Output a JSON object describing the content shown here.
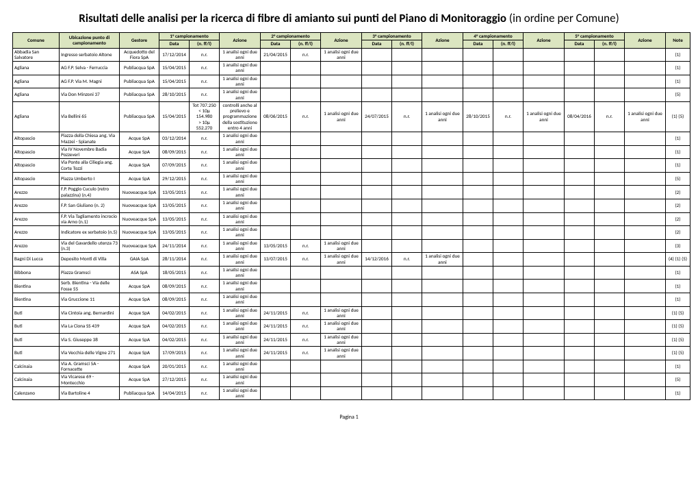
{
  "title_bold": "Risultati delle analisi per la ricerca di fibre di amianto sui punti del Piano di Monitoraggio",
  "title_rest": " (in ordine per Comune)",
  "footer": "Pagina 1",
  "headers": {
    "comune": "Comune",
    "ubicazione": "Ubicazione punto di campionamento",
    "gestore": "Gestore",
    "camp1": "1° campionamento",
    "camp2": "2° campionamento",
    "camp3": "3° campionamento",
    "camp4": "4° campionamento",
    "camp5": "5° campionamento",
    "data": "Data",
    "ff": "(n. ff/l)",
    "azione": "Azione",
    "note": "Note"
  },
  "rows": [
    {
      "comune": "Abbadia San Salvatore",
      "ubic": "Ingresso serbatoio Altone",
      "gest": "Acquedotto del Fiora SpA",
      "d1": "17/12/2014",
      "f1": "n.r.",
      "a1": "1 analisi ogni due anni",
      "d2": "21/04/2015",
      "f2": "n.r.",
      "a2": "1 analisi ogni due anni",
      "d3": "",
      "f3": "",
      "a3": "",
      "d4": "",
      "f4": "",
      "a4": "",
      "d5": "",
      "f5": "",
      "a5": "",
      "note": "(1)"
    },
    {
      "comune": "Agliana",
      "ubic": "AG F.P. Selva - Ferruccia",
      "gest": "Publiacqua SpA",
      "d1": "15/04/2015",
      "f1": "n.r.",
      "a1": "1 analisi ogni due anni",
      "d2": "",
      "f2": "",
      "a2": "",
      "d3": "",
      "f3": "",
      "a3": "",
      "d4": "",
      "f4": "",
      "a4": "",
      "d5": "",
      "f5": "",
      "a5": "",
      "note": "(1)"
    },
    {
      "comune": "Agliana",
      "ubic": "AG F.P. Via M. Magni",
      "gest": "Publiacqua SpA",
      "d1": "15/04/2015",
      "f1": "n.r.",
      "a1": "1 analisi ogni due anni",
      "d2": "",
      "f2": "",
      "a2": "",
      "d3": "",
      "f3": "",
      "a3": "",
      "d4": "",
      "f4": "",
      "a4": "",
      "d5": "",
      "f5": "",
      "a5": "",
      "note": "(1)"
    },
    {
      "comune": "Agliana",
      "ubic": "Via Don Minzoni 37",
      "gest": "Publiacqua SpA",
      "d1": "28/10/2015",
      "f1": "n.r.",
      "a1": "1 analisi ogni due anni",
      "d2": "",
      "f2": "",
      "a2": "",
      "d3": "",
      "f3": "",
      "a3": "",
      "d4": "",
      "f4": "",
      "a4": "",
      "d5": "",
      "f5": "",
      "a5": "",
      "note": "(5)"
    },
    {
      "comune": "Agliana",
      "ubic": "Via Bellini 65",
      "gest": "Publiacqua SpA",
      "d1": "15/04/2015",
      "f1": "Tot 707.250\n< 10μ 154.980\n> 10μ 552.270",
      "a1": "controlli anche al prelievo e programmazione della sostituzione entro 4 anni",
      "d2": "08/06/2015",
      "f2": "n.r.",
      "a2": "1 analisi ogni due anni",
      "d3": "24/07/2015",
      "f3": "n.r.",
      "a3": "1 analisi ogni due anni",
      "d4": "28/10/2015",
      "f4": "n.r.",
      "a4": "1 analisi ogni due anni",
      "d5": "08/04/2016",
      "f5": "n.r.",
      "a5": "1 analisi ogni due anni",
      "note": "(1) (5)"
    },
    {
      "comune": "Altopascio",
      "ubic": "Piazza della Chiesa ang. Via Mazzei - Spianate",
      "gest": "Acque SpA",
      "d1": "03/12/2014",
      "f1": "n.r.",
      "a1": "1 analisi ogni due anni",
      "d2": "",
      "f2": "",
      "a2": "",
      "d3": "",
      "f3": "",
      "a3": "",
      "d4": "",
      "f4": "",
      "a4": "",
      "d5": "",
      "f5": "",
      "a5": "",
      "note": "(1)"
    },
    {
      "comune": "Altopascio",
      "ubic": "Via IV Novembre Badia Pozzeveri",
      "gest": "Acque SpA",
      "d1": "08/09/2015",
      "f1": "n.r.",
      "a1": "1 analisi ogni due anni",
      "d2": "",
      "f2": "",
      "a2": "",
      "d3": "",
      "f3": "",
      "a3": "",
      "d4": "",
      "f4": "",
      "a4": "",
      "d5": "",
      "f5": "",
      "a5": "",
      "note": "(1)"
    },
    {
      "comune": "Altopascio",
      "ubic": "Via Ponte alla Ciliegia ang. Corte Tozzi",
      "gest": "Acque SpA",
      "d1": "07/09/2015",
      "f1": "n.r.",
      "a1": "1 analisi ogni due anni",
      "d2": "",
      "f2": "",
      "a2": "",
      "d3": "",
      "f3": "",
      "a3": "",
      "d4": "",
      "f4": "",
      "a4": "",
      "d5": "",
      "f5": "",
      "a5": "",
      "note": "(1)"
    },
    {
      "comune": "Altopascio",
      "ubic": "Piazza Umberto I",
      "gest": "Acque SpA",
      "d1": "29/12/2015",
      "f1": "n.r.",
      "a1": "1 analisi ogni due anni",
      "d2": "",
      "f2": "",
      "a2": "",
      "d3": "",
      "f3": "",
      "a3": "",
      "d4": "",
      "f4": "",
      "a4": "",
      "d5": "",
      "f5": "",
      "a5": "",
      "note": "(5)"
    },
    {
      "comune": "Arezzo",
      "ubic": "F.P. Poggio Cuculo (retro palazzina) (n.4)",
      "gest": "Nuoveacque SpA",
      "d1": "13/05/2015",
      "f1": "n.r.",
      "a1": "1 analisi ogni due anni",
      "d2": "",
      "f2": "",
      "a2": "",
      "d3": "",
      "f3": "",
      "a3": "",
      "d4": "",
      "f4": "",
      "a4": "",
      "d5": "",
      "f5": "",
      "a5": "",
      "note": "(2)"
    },
    {
      "comune": "Arezzo",
      "ubic": "F.P. San Giuliano (n. 2)",
      "gest": "Nuoveacque SpA",
      "d1": "13/05/2015",
      "f1": "n.r.",
      "a1": "1 analisi ogni due anni",
      "d2": "",
      "f2": "",
      "a2": "",
      "d3": "",
      "f3": "",
      "a3": "",
      "d4": "",
      "f4": "",
      "a4": "",
      "d5": "",
      "f5": "",
      "a5": "",
      "note": "(2)"
    },
    {
      "comune": "Arezzo",
      "ubic": "F.P. Via Tagliamento incrocio via Arno (n.1)",
      "gest": "Nuoveacque SpA",
      "d1": "13/05/2015",
      "f1": "n.r.",
      "a1": "1 analisi ogni due anni",
      "d2": "",
      "f2": "",
      "a2": "",
      "d3": "",
      "f3": "",
      "a3": "",
      "d4": "",
      "f4": "",
      "a4": "",
      "d5": "",
      "f5": "",
      "a5": "",
      "note": "(2)"
    },
    {
      "comune": "Arezzo",
      "ubic": "Indicatore ex serbatoio (n.5)",
      "gest": "Nuoveacque SpA",
      "d1": "13/05/2015",
      "f1": "n.r.",
      "a1": "1 analisi ogni due anni",
      "d2": "",
      "f2": "",
      "a2": "",
      "d3": "",
      "f3": "",
      "a3": "",
      "d4": "",
      "f4": "",
      "a4": "",
      "d5": "",
      "f5": "",
      "a5": "",
      "note": "(2)"
    },
    {
      "comune": "Arezzo",
      "ubic": "Via del Gavardello utenza 73 (n.3)",
      "gest": "Nuoveacque SpA",
      "d1": "24/11/2014",
      "f1": "n.r.",
      "a1": "1 analisi ogni due anni",
      "d2": "13/05/2015",
      "f2": "n.r.",
      "a2": "1 analisi ogni due anni",
      "d3": "",
      "f3": "",
      "a3": "",
      "d4": "",
      "f4": "",
      "a4": "",
      "d5": "",
      "f5": "",
      "a5": "",
      "note": "(3)"
    },
    {
      "comune": "Bagni Di Lucca",
      "ubic": "Deposito Monti di Villa",
      "gest": "GAIA SpA",
      "d1": "28/11/2014",
      "f1": "n.r.",
      "a1": "1 analisi ogni due anni",
      "d2": "13/07/2015",
      "f2": "n.r.",
      "a2": "1 analisi ogni due anni",
      "d3": "14/12/2016",
      "f3": "n.r.",
      "a3": "1 analisi ogni due anni",
      "d4": "",
      "f4": "",
      "a4": "",
      "d5": "",
      "f5": "",
      "a5": "",
      "note": "(4) (1) (5)"
    },
    {
      "comune": "Bibbona",
      "ubic": "Piazza Gramsci",
      "gest": "ASA SpA",
      "d1": "18/05/2015",
      "f1": "n.r.",
      "a1": "1 analisi ogni due anni",
      "d2": "",
      "f2": "",
      "a2": "",
      "d3": "",
      "f3": "",
      "a3": "",
      "d4": "",
      "f4": "",
      "a4": "",
      "d5": "",
      "f5": "",
      "a5": "",
      "note": "(1)"
    },
    {
      "comune": "Bientina",
      "ubic": "Serb. Bientina - Via delle Fosse 55",
      "gest": "Acque SpA",
      "d1": "08/09/2015",
      "f1": "n.r.",
      "a1": "1 analisi ogni due anni",
      "d2": "",
      "f2": "",
      "a2": "",
      "d3": "",
      "f3": "",
      "a3": "",
      "d4": "",
      "f4": "",
      "a4": "",
      "d5": "",
      "f5": "",
      "a5": "",
      "note": "(1)"
    },
    {
      "comune": "Bientina",
      "ubic": "Via Gruccione 11",
      "gest": "Acque SpA",
      "d1": "08/09/2015",
      "f1": "n.r.",
      "a1": "1 analisi ogni due anni",
      "d2": "",
      "f2": "",
      "a2": "",
      "d3": "",
      "f3": "",
      "a3": "",
      "d4": "",
      "f4": "",
      "a4": "",
      "d5": "",
      "f5": "",
      "a5": "",
      "note": "(1)"
    },
    {
      "comune": "Buti",
      "ubic": "Via Cintoia ang. Bernardini",
      "gest": "Acque SpA",
      "d1": "04/02/2015",
      "f1": "n.r.",
      "a1": "1 analisi ogni due anni",
      "d2": "24/11/2015",
      "f2": "n.r.",
      "a2": "1 analisi ogni due anni",
      "d3": "",
      "f3": "",
      "a3": "",
      "d4": "",
      "f4": "",
      "a4": "",
      "d5": "",
      "f5": "",
      "a5": "",
      "note": "(1) (5)"
    },
    {
      "comune": "Buti",
      "ubic": "Via La Ciona SS 439",
      "gest": "Acque SpA",
      "d1": "04/02/2015",
      "f1": "n.r.",
      "a1": "1 analisi ogni due anni",
      "d2": "24/11/2015",
      "f2": "n.r.",
      "a2": "1 analisi ogni due anni",
      "d3": "",
      "f3": "",
      "a3": "",
      "d4": "",
      "f4": "",
      "a4": "",
      "d5": "",
      "f5": "",
      "a5": "",
      "note": "(1) (5)"
    },
    {
      "comune": "Buti",
      "ubic": "Via S. Giuseppe 38",
      "gest": "Acque SpA",
      "d1": "04/02/2015",
      "f1": "n.r.",
      "a1": "1 analisi ogni due anni",
      "d2": "24/11/2015",
      "f2": "n.r.",
      "a2": "1 analisi ogni due anni",
      "d3": "",
      "f3": "",
      "a3": "",
      "d4": "",
      "f4": "",
      "a4": "",
      "d5": "",
      "f5": "",
      "a5": "",
      "note": "(1) (5)"
    },
    {
      "comune": "Buti",
      "ubic": "Via Vecchia delle Vigne 271",
      "gest": "Acque SpA",
      "d1": "17/09/2015",
      "f1": "n.r.",
      "a1": "1 analisi ogni due anni",
      "d2": "24/11/2015",
      "f2": "n.r.",
      "a2": "1 analisi ogni due anni",
      "d3": "",
      "f3": "",
      "a3": "",
      "d4": "",
      "f4": "",
      "a4": "",
      "d5": "",
      "f5": "",
      "a5": "",
      "note": "(1) (5)"
    },
    {
      "comune": "Calcinaia",
      "ubic": "Via A. Gramsci 5A - Fornacette",
      "gest": "Acque SpA",
      "d1": "20/01/2015",
      "f1": "n.r.",
      "a1": "1 analisi ogni due anni",
      "d2": "",
      "f2": "",
      "a2": "",
      "d3": "",
      "f3": "",
      "a3": "",
      "d4": "",
      "f4": "",
      "a4": "",
      "d5": "",
      "f5": "",
      "a5": "",
      "note": "(1)"
    },
    {
      "comune": "Calcinaia",
      "ubic": "Via Vicarese 69 - Montecchio",
      "gest": "Acque SpA",
      "d1": "27/12/2015",
      "f1": "n.r.",
      "a1": "1 analisi ogni due anni",
      "d2": "",
      "f2": "",
      "a2": "",
      "d3": "",
      "f3": "",
      "a3": "",
      "d4": "",
      "f4": "",
      "a4": "",
      "d5": "",
      "f5": "",
      "a5": "",
      "note": "(5)"
    },
    {
      "comune": "Calenzano",
      "ubic": "Via Bartoline 4",
      "gest": "Publiacqua SpA",
      "d1": "14/04/2015",
      "f1": "n.r.",
      "a1": "1 analisi ogni due anni",
      "d2": "",
      "f2": "",
      "a2": "",
      "d3": "",
      "f3": "",
      "a3": "",
      "d4": "",
      "f4": "",
      "a4": "",
      "d5": "",
      "f5": "",
      "a5": "",
      "note": "(1)"
    }
  ]
}
